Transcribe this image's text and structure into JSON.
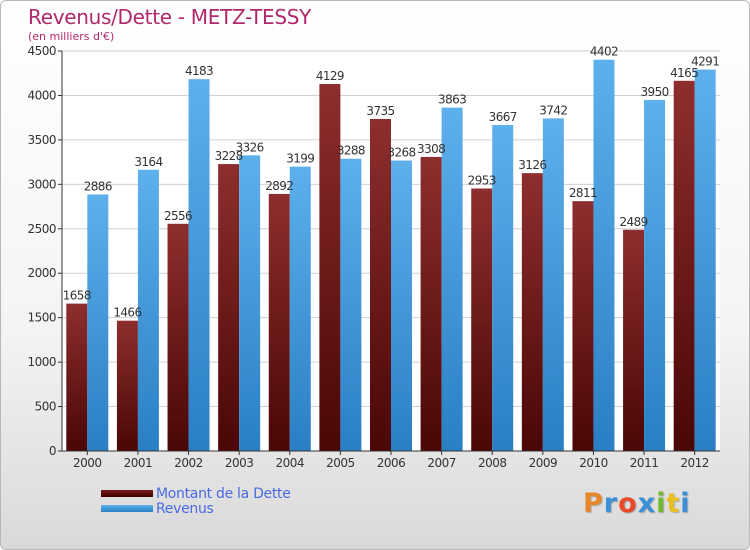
{
  "header": {
    "title": "Revenus/Dette - METZ-TESSY",
    "subtitle": "(en milliers d'€)"
  },
  "legend": {
    "items": [
      {
        "label": "Montant de la Dette",
        "color": "#7a1d1d"
      },
      {
        "label": "Revenus",
        "color": "#3a9be0"
      }
    ]
  },
  "logo": {
    "letters": [
      "P",
      "r",
      "o",
      "x",
      "i",
      "t",
      "i"
    ],
    "colors": [
      "#e8872a",
      "#3a8fd8",
      "#e84a2a",
      "#3a8fd8",
      "#70b830",
      "#e8c020",
      "#3a8fd8"
    ]
  },
  "chart_data": {
    "type": "bar",
    "categories": [
      "2000",
      "2001",
      "2002",
      "2003",
      "2004",
      "2005",
      "2006",
      "2007",
      "2008",
      "2009",
      "2010",
      "2011",
      "2012"
    ],
    "series": [
      {
        "name": "Montant de la Dette",
        "color": "#7a1d1d",
        "values": [
          1658,
          1466,
          2556,
          3228,
          2892,
          4129,
          3735,
          3308,
          2953,
          3126,
          2811,
          2489,
          4165
        ]
      },
      {
        "name": "Revenus",
        "color": "#3a9be0",
        "values": [
          2886,
          3164,
          4183,
          3326,
          3199,
          3288,
          3268,
          3863,
          3667,
          3742,
          4402,
          3950,
          4291
        ]
      }
    ],
    "data_labels": [
      [
        "1658",
        "1466",
        "2556",
        "3228",
        "2892",
        "4129",
        "3735",
        "3308",
        "2953",
        "3126",
        "2811",
        "2489",
        "4165"
      ],
      [
        "2886",
        "3164",
        "4183",
        "3326",
        "3199",
        "3288",
        "3268",
        "3863",
        "3667",
        "3742",
        "4402",
        "3950",
        "4291"
      ]
    ],
    "ylim": [
      0,
      4500
    ],
    "yticks": [
      0,
      500,
      1000,
      1500,
      2000,
      2500,
      3000,
      3500,
      4000,
      4500
    ],
    "grid": true,
    "legend_position": "bottom-left"
  }
}
